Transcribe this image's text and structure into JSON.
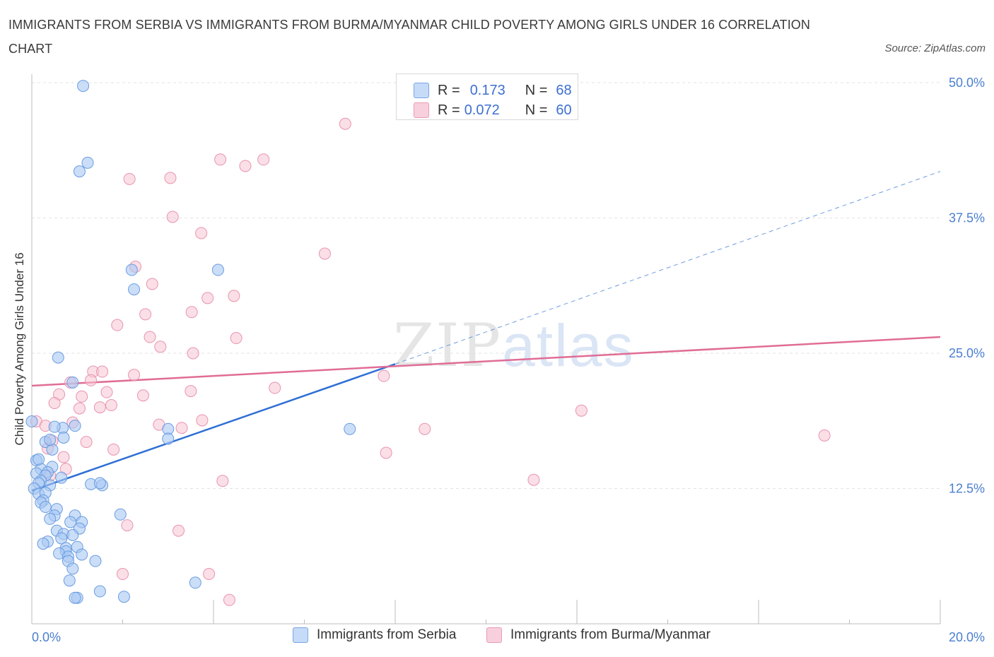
{
  "title": "IMMIGRANTS FROM SERBIA VS IMMIGRANTS FROM BURMA/MYANMAR CHILD POVERTY AMONG GIRLS UNDER 16 CORRELATION CHART",
  "source": "Source: ZipAtlas.com",
  "watermark": {
    "zip": "ZIP",
    "atlas": "atlas"
  },
  "legend_top": {
    "rows": [
      {
        "r_label": "R = ",
        "r_value": "0.173",
        "n_label": "N = ",
        "n_value": "68"
      },
      {
        "r_label": "R = ",
        "r_value": "0.072",
        "n_label": "N = ",
        "n_value": "60"
      }
    ]
  },
  "colors": {
    "serbia_fill": "#a9c8f3",
    "serbia_stroke": "#6a9ce0",
    "serbia_line": "#2f6fd4",
    "burma_fill": "#f7c4d4",
    "burma_stroke": "#e893b0",
    "burma_line": "#e06d96",
    "grid": "#e3e3e3",
    "tick_text": "#4a7fd0"
  },
  "chart_data": {
    "type": "scatter",
    "title": "IMMIGRANTS FROM SERBIA VS IMMIGRANTS FROM BURMA/MYANMAR CHILD POVERTY AMONG GIRLS UNDER 16 CORRELATION CHART",
    "xlabel": "",
    "ylabel": "Child Poverty Among Girls Under 16",
    "xlim": [
      0,
      20
    ],
    "ylim": [
      0,
      50
    ],
    "x_ticks": [
      "0.0%",
      "20.0%"
    ],
    "y_ticks": [
      {
        "value": 12.5,
        "label": "12.5%"
      },
      {
        "value": 25.0,
        "label": "25.0%"
      },
      {
        "value": 37.5,
        "label": "37.5%"
      },
      {
        "value": 50.0,
        "label": "50.0%"
      }
    ],
    "series": [
      {
        "name": "Immigrants from Serbia",
        "R": 0.173,
        "N": 68,
        "trend": {
          "x0": 0.0,
          "y0": 12.3,
          "x1": 8.0,
          "y1": 24.0,
          "dash_to_x": 20.0,
          "dash_to_y": 41.8
        },
        "points": [
          [
            1.13,
            49.7
          ],
          [
            1.23,
            42.6
          ],
          [
            1.05,
            41.8
          ],
          [
            2.2,
            32.7
          ],
          [
            4.1,
            32.7
          ],
          [
            2.25,
            30.9
          ],
          [
            0.58,
            24.6
          ],
          [
            0.9,
            22.3
          ],
          [
            7.0,
            18.0
          ],
          [
            3.0,
            18.0
          ],
          [
            3.0,
            17.1
          ],
          [
            0.95,
            18.3
          ],
          [
            0.0,
            18.7
          ],
          [
            0.68,
            18.1
          ],
          [
            0.5,
            18.2
          ],
          [
            0.7,
            17.2
          ],
          [
            0.3,
            16.8
          ],
          [
            0.45,
            16.1
          ],
          [
            0.1,
            15.1
          ],
          [
            0.2,
            14.3
          ],
          [
            0.45,
            14.5
          ],
          [
            0.35,
            14.0
          ],
          [
            0.1,
            13.9
          ],
          [
            0.65,
            13.5
          ],
          [
            0.3,
            13.7
          ],
          [
            0.2,
            13.2
          ],
          [
            0.15,
            13.0
          ],
          [
            0.4,
            12.8
          ],
          [
            1.3,
            12.9
          ],
          [
            1.55,
            12.8
          ],
          [
            1.5,
            13.0
          ],
          [
            0.05,
            12.5
          ],
          [
            0.15,
            12.0
          ],
          [
            0.3,
            12.1
          ],
          [
            0.25,
            11.4
          ],
          [
            0.2,
            11.2
          ],
          [
            0.3,
            10.8
          ],
          [
            0.55,
            10.6
          ],
          [
            0.5,
            10.0
          ],
          [
            0.95,
            10.0
          ],
          [
            1.95,
            10.1
          ],
          [
            0.4,
            9.7
          ],
          [
            0.85,
            9.4
          ],
          [
            1.1,
            9.4
          ],
          [
            1.05,
            8.8
          ],
          [
            0.55,
            8.6
          ],
          [
            0.7,
            8.3
          ],
          [
            0.9,
            8.2
          ],
          [
            0.65,
            7.9
          ],
          [
            0.35,
            7.6
          ],
          [
            0.25,
            7.4
          ],
          [
            0.75,
            7.0
          ],
          [
            1.0,
            7.1
          ],
          [
            0.75,
            6.7
          ],
          [
            0.6,
            6.5
          ],
          [
            0.8,
            6.2
          ],
          [
            1.1,
            6.4
          ],
          [
            0.8,
            5.8
          ],
          [
            1.4,
            5.8
          ],
          [
            0.9,
            5.1
          ],
          [
            0.83,
            4.0
          ],
          [
            3.6,
            3.8
          ],
          [
            1.5,
            3.0
          ],
          [
            1.0,
            2.4
          ],
          [
            0.95,
            2.4
          ],
          [
            2.03,
            2.5
          ],
          [
            0.15,
            15.2
          ],
          [
            0.4,
            17.0
          ]
        ]
      },
      {
        "name": "Immigrants from Burma/Myanmar",
        "R": 0.072,
        "N": 60,
        "trend": {
          "x0": 0.0,
          "y0": 22.0,
          "x1": 20.0,
          "y1": 26.5
        },
        "points": [
          [
            6.9,
            46.2
          ],
          [
            4.15,
            42.9
          ],
          [
            5.1,
            42.9
          ],
          [
            4.7,
            42.3
          ],
          [
            2.15,
            41.1
          ],
          [
            3.05,
            41.2
          ],
          [
            3.1,
            37.6
          ],
          [
            3.73,
            36.1
          ],
          [
            6.45,
            34.2
          ],
          [
            2.28,
            33.0
          ],
          [
            2.65,
            31.4
          ],
          [
            3.87,
            30.1
          ],
          [
            4.45,
            30.3
          ],
          [
            2.5,
            28.6
          ],
          [
            3.52,
            28.8
          ],
          [
            1.88,
            27.6
          ],
          [
            2.6,
            26.5
          ],
          [
            4.5,
            26.4
          ],
          [
            2.83,
            25.6
          ],
          [
            3.55,
            25.0
          ],
          [
            0.85,
            22.3
          ],
          [
            1.35,
            23.3
          ],
          [
            1.55,
            23.3
          ],
          [
            2.25,
            23.0
          ],
          [
            1.3,
            22.5
          ],
          [
            7.75,
            22.9
          ],
          [
            5.35,
            21.8
          ],
          [
            1.65,
            21.4
          ],
          [
            3.5,
            21.5
          ],
          [
            0.6,
            21.2
          ],
          [
            2.45,
            21.1
          ],
          [
            1.1,
            21.0
          ],
          [
            0.5,
            20.4
          ],
          [
            1.75,
            20.2
          ],
          [
            1.05,
            19.9
          ],
          [
            1.5,
            20.0
          ],
          [
            12.1,
            19.7
          ],
          [
            0.1,
            18.7
          ],
          [
            0.9,
            18.6
          ],
          [
            3.75,
            18.8
          ],
          [
            0.3,
            18.3
          ],
          [
            2.8,
            18.4
          ],
          [
            3.3,
            18.1
          ],
          [
            8.65,
            18.0
          ],
          [
            17.45,
            17.4
          ],
          [
            0.45,
            16.9
          ],
          [
            1.2,
            16.8
          ],
          [
            0.35,
            16.2
          ],
          [
            1.8,
            16.1
          ],
          [
            7.8,
            15.8
          ],
          [
            0.7,
            15.4
          ],
          [
            0.75,
            14.3
          ],
          [
            0.4,
            13.7
          ],
          [
            4.2,
            13.2
          ],
          [
            11.05,
            13.3
          ],
          [
            2.1,
            9.1
          ],
          [
            3.23,
            8.6
          ],
          [
            2.0,
            4.6
          ],
          [
            3.9,
            4.6
          ],
          [
            4.35,
            2.2
          ]
        ]
      }
    ]
  },
  "legend_bottom": [
    {
      "label": "Immigrants from Serbia"
    },
    {
      "label": "Immigrants from Burma/Myanmar"
    }
  ]
}
